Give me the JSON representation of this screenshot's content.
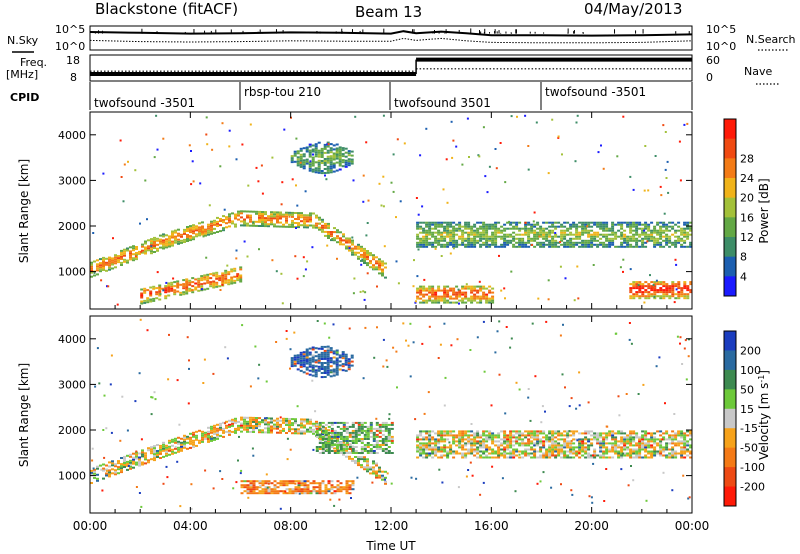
{
  "header": {
    "station": "Blackstone (fitACF)",
    "beam": "Beam 13",
    "date": "04/May/2013"
  },
  "noise_panel": {
    "left_label": "N.Sky",
    "right_label": "N.Search",
    "tick_top": "10^5",
    "tick_bottom": "10^0"
  },
  "freq_panel": {
    "left_label_1": "Freq.",
    "left_label_2": "[MHz]",
    "left_tick_top": "18",
    "left_tick_bottom": "8",
    "right_label": "Nave",
    "right_tick_top": "60",
    "right_tick_bottom": "0"
  },
  "cpid": {
    "label": "CPID",
    "segments": [
      {
        "name": "twofsound -3501",
        "start_h": 0.0,
        "end_h": 6.0
      },
      {
        "name": "rbsp-tou 210",
        "start_h": 6.0,
        "end_h": 12.0
      },
      {
        "name": "twofsound 3501",
        "start_h": 12.0,
        "end_h": 18.0
      },
      {
        "name": "twofsound -3501",
        "start_h": 18.0,
        "end_h": 24.0
      }
    ]
  },
  "chart_data": [
    {
      "type": "heatmap",
      "panel": "power",
      "ylabel": "Slant Range [km]",
      "yticks": [
        "1000",
        "2000",
        "3000",
        "4000"
      ],
      "ylim": [
        180,
        4500
      ],
      "xlim_hours": [
        0,
        24
      ],
      "colorbar_label": "Power [dB]",
      "colorbar_ticks": [
        "4",
        "8",
        "12",
        "16",
        "20",
        "24",
        "28"
      ],
      "colorbar_range": [
        0,
        32
      ],
      "colors": [
        "#1b1bff",
        "#1c5fb0",
        "#3d8d67",
        "#63a845",
        "#a3c13a",
        "#f0b31a",
        "#f37b16",
        "#f04a12",
        "#ff1a08"
      ],
      "features": [
        {
          "from_h": 0.0,
          "to_h": 11.8,
          "shape": "arc",
          "range_km": [
            1050,
            1700,
            2200,
            2150,
            1000
          ],
          "value_db": 22
        },
        {
          "from_h": 2.0,
          "to_h": 6.0,
          "shape": "arc",
          "range_km": [
            450,
            700,
            950
          ],
          "value_db": 24
        },
        {
          "from_h": 8.0,
          "to_h": 10.5,
          "shape": "blob",
          "range_km": [
            3200,
            3900
          ],
          "value_db": 12
        },
        {
          "from_h": 13.0,
          "to_h": 24.0,
          "shape": "band",
          "range_km": [
            1550,
            2100
          ],
          "value_db": 14
        },
        {
          "from_h": 13.0,
          "to_h": 16.0,
          "shape": "band",
          "range_km": [
            300,
            700
          ],
          "value_db": 24
        },
        {
          "from_h": 21.5,
          "to_h": 24.0,
          "shape": "band",
          "range_km": [
            400,
            800
          ],
          "value_db": 28
        }
      ]
    },
    {
      "type": "heatmap",
      "panel": "velocity",
      "ylabel": "Slant Range [km]",
      "yticks": [
        "1000",
        "2000",
        "3000",
        "4000"
      ],
      "ylim": [
        180,
        4500
      ],
      "xlim_hours": [
        0,
        24
      ],
      "xticks": [
        "00:00",
        "04:00",
        "08:00",
        "12:00",
        "16:00",
        "20:00",
        "00:00"
      ],
      "xlabel": "Time UT",
      "colorbar_label": "Velocity [m s^-1]",
      "colorbar_ticks": [
        "200",
        "100",
        "50",
        "15",
        "-15",
        "-50",
        "-100",
        "-200"
      ],
      "colors": [
        "#1b3dbf",
        "#2a6aa0",
        "#3d8a50",
        "#6dc93a",
        "#c8c8c8",
        "#f6a21a",
        "#f47a16",
        "#ee4a14",
        "#ff1a08"
      ],
      "features": [
        {
          "from_h": 0.0,
          "to_h": 11.8,
          "shape": "arc",
          "range_km": [
            1000,
            1600,
            2150,
            2100,
            950
          ],
          "value_ms": 0
        },
        {
          "from_h": 6.0,
          "to_h": 10.5,
          "shape": "band",
          "range_km": [
            600,
            900
          ],
          "value_ms": -60
        },
        {
          "from_h": 8.0,
          "to_h": 10.5,
          "shape": "blob",
          "range_km": [
            3200,
            3900
          ],
          "value_ms": 180
        },
        {
          "from_h": 9.0,
          "to_h": 12.0,
          "shape": "band",
          "range_km": [
            1500,
            2200
          ],
          "value_ms": 40
        },
        {
          "from_h": 13.0,
          "to_h": 24.0,
          "shape": "band",
          "range_km": [
            1400,
            2000
          ],
          "value_ms": 0
        }
      ]
    }
  ],
  "noise_series": {
    "x_hours": [
      0,
      2,
      4,
      6,
      8,
      10,
      12,
      12.5,
      13,
      14,
      15,
      16,
      18,
      20,
      22,
      24
    ],
    "sky_log": [
      4.0,
      3.8,
      3.6,
      3.7,
      3.9,
      3.8,
      3.6,
      4.2,
      3.7,
      4.1,
      3.7,
      3.2,
      3.2,
      3.1,
      3.2,
      3.4
    ],
    "search_log": [
      1.9,
      1.6,
      1.5,
      1.6,
      1.8,
      1.7,
      1.7,
      2.4,
      1.9,
      2.4,
      1.8,
      1.4,
      1.3,
      1.3,
      1.4,
      1.8
    ]
  },
  "freq_series": {
    "freq_mhz": [
      {
        "from_h": 0,
        "to_h": 13,
        "value": 10.5
      },
      {
        "from_h": 13,
        "to_h": 24,
        "value": 16.5
      }
    ],
    "nave": [
      {
        "from_h": 0,
        "to_h": 13,
        "value": 22
      },
      {
        "from_h": 13,
        "to_h": 24,
        "value": 28
      }
    ]
  }
}
